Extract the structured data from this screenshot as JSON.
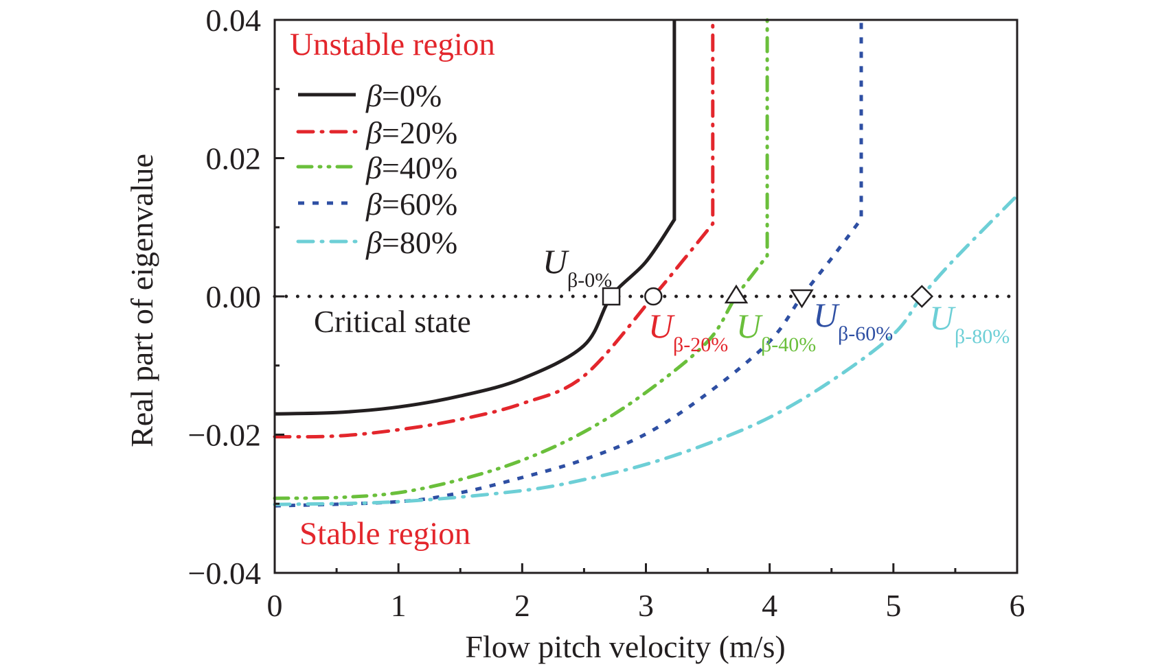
{
  "chart_data": {
    "type": "line",
    "title": "",
    "xlabel": "Flow pitch velocity (m/s)",
    "ylabel": "Real part of eigenvalue",
    "xlim": [
      0,
      6
    ],
    "ylim": [
      -0.04,
      0.04
    ],
    "x_ticks": [
      0,
      1,
      2,
      3,
      4,
      5,
      6
    ],
    "x_tick_labels": [
      "0",
      "1",
      "2",
      "3",
      "4",
      "5",
      "6"
    ],
    "x_minor_step": 0.5,
    "y_ticks": [
      -0.04,
      -0.02,
      0.0,
      0.02,
      0.04
    ],
    "y_tick_labels": [
      "−0.04",
      "−0.02",
      "0.00",
      "0.02",
      "0.04"
    ],
    "y_minor_step": 0.01,
    "grid": false,
    "legend_position": "top-left",
    "reference_line": {
      "y": 0.0,
      "style": "dotted",
      "color": "#231f20",
      "label": "Critical state"
    },
    "region_labels": [
      {
        "text": "Unstable region",
        "color": "#e3262c",
        "position": "top-left"
      },
      {
        "text": "Stable region",
        "color": "#e3262c",
        "position": "bottom-left"
      }
    ],
    "series": [
      {
        "name": "β=0%",
        "beta": "0%",
        "color": "#231f20",
        "dash": "solid",
        "points": [
          [
            0,
            -0.017
          ],
          [
            0.5,
            -0.0168
          ],
          [
            1.0,
            -0.016
          ],
          [
            1.5,
            -0.0144
          ],
          [
            2.0,
            -0.0119
          ],
          [
            2.5,
            -0.0071
          ],
          [
            2.72,
            0.0
          ],
          [
            3.0,
            0.005
          ],
          [
            3.23,
            0.0111
          ],
          [
            3.23,
            0.04
          ]
        ]
      },
      {
        "name": "β=20%",
        "beta": "20%",
        "color": "#e3262c",
        "dash": "dash-dot",
        "points": [
          [
            0,
            -0.0203
          ],
          [
            0.5,
            -0.0202
          ],
          [
            1.0,
            -0.0193
          ],
          [
            1.5,
            -0.0178
          ],
          [
            2.0,
            -0.0155
          ],
          [
            2.5,
            -0.0115
          ],
          [
            3.06,
            0.0
          ],
          [
            3.3,
            0.0052
          ],
          [
            3.54,
            0.0105
          ],
          [
            3.54,
            0.04
          ]
        ]
      },
      {
        "name": "β=40%",
        "beta": "40%",
        "color": "#6abf3b",
        "dash": "dash-dot-dot",
        "points": [
          [
            0,
            -0.0292
          ],
          [
            0.5,
            -0.0291
          ],
          [
            1.0,
            -0.0284
          ],
          [
            1.5,
            -0.0265
          ],
          [
            2.0,
            -0.0237
          ],
          [
            2.5,
            -0.0196
          ],
          [
            3.0,
            -0.0139
          ],
          [
            3.5,
            -0.0065
          ],
          [
            3.73,
            0.0
          ],
          [
            3.98,
            0.0059
          ],
          [
            3.98,
            0.04
          ]
        ]
      },
      {
        "name": "β=60%",
        "beta": "60%",
        "color": "#2e4fa3",
        "dash": "dotted",
        "points": [
          [
            0,
            -0.0303
          ],
          [
            1.0,
            -0.0297
          ],
          [
            1.5,
            -0.0284
          ],
          [
            2.0,
            -0.0262
          ],
          [
            2.5,
            -0.0236
          ],
          [
            3.0,
            -0.0199
          ],
          [
            3.5,
            -0.014
          ],
          [
            4.0,
            -0.0065
          ],
          [
            4.26,
            0.0
          ],
          [
            4.5,
            0.0055
          ],
          [
            4.74,
            0.0112
          ],
          [
            4.74,
            0.04
          ]
        ]
      },
      {
        "name": "β=80%",
        "beta": "80%",
        "color": "#6dcfd6",
        "dash": "dash-dot",
        "points": [
          [
            0,
            -0.0301
          ],
          [
            1.0,
            -0.0297
          ],
          [
            2.0,
            -0.0281
          ],
          [
            2.5,
            -0.0265
          ],
          [
            3.0,
            -0.0243
          ],
          [
            3.5,
            -0.0213
          ],
          [
            4.0,
            -0.0175
          ],
          [
            4.5,
            -0.0122
          ],
          [
            5.0,
            -0.0055
          ],
          [
            5.23,
            0.0
          ],
          [
            5.5,
            0.0055
          ],
          [
            6.0,
            0.0146
          ]
        ]
      }
    ],
    "critical_points": [
      {
        "label_main": "U",
        "label_sub": "β-0%",
        "x": 2.72,
        "y": 0.0,
        "marker": "square",
        "color": "#231f20"
      },
      {
        "label_main": "U",
        "label_sub": "β-20%",
        "x": 3.06,
        "y": 0.0,
        "marker": "circle",
        "color": "#e3262c"
      },
      {
        "label_main": "U",
        "label_sub": "β-40%",
        "x": 3.73,
        "y": 0.0,
        "marker": "triangle-up",
        "color": "#6abf3b"
      },
      {
        "label_main": "U",
        "label_sub": "β-60%",
        "x": 4.26,
        "y": 0.0,
        "marker": "triangle-down",
        "color": "#2e4fa3"
      },
      {
        "label_main": "U",
        "label_sub": "β-80%",
        "x": 5.23,
        "y": 0.0,
        "marker": "diamond",
        "color": "#6dcfd6"
      }
    ]
  }
}
